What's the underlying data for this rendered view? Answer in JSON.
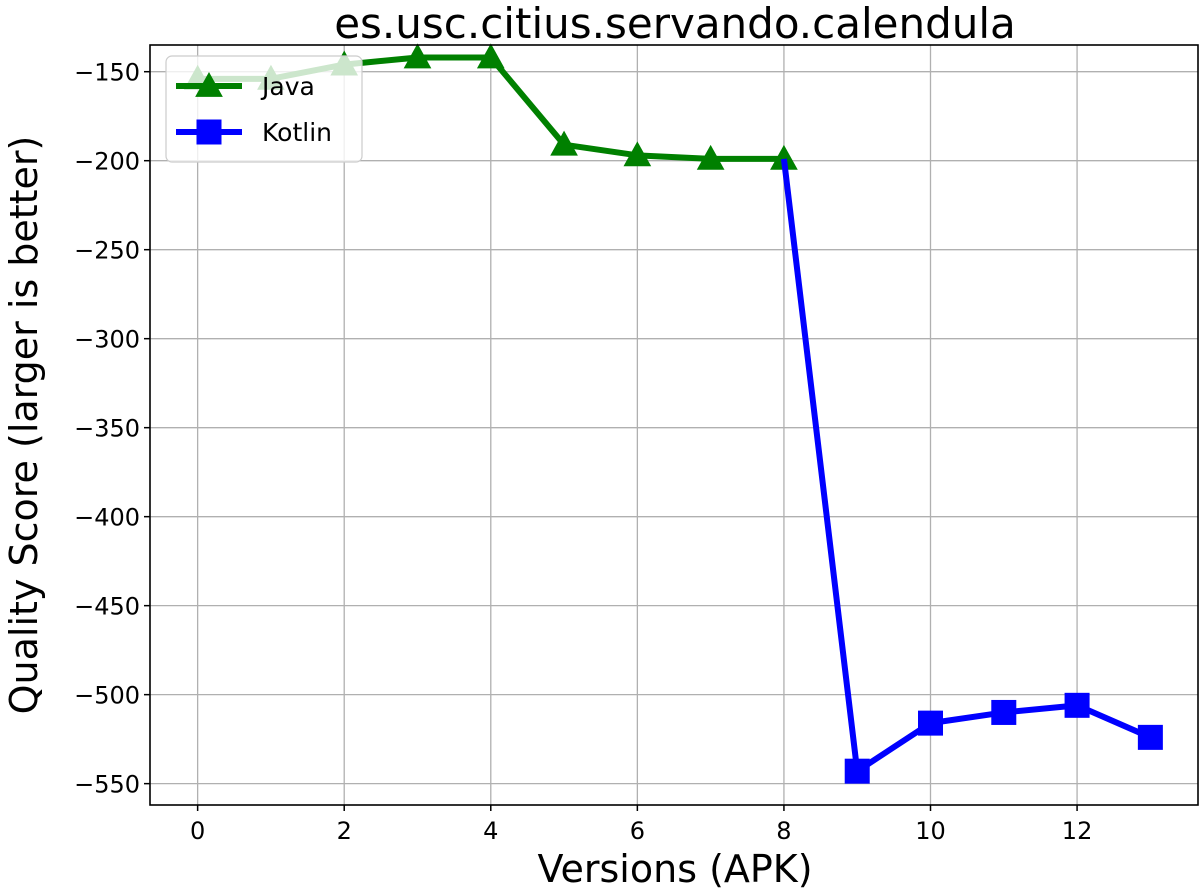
{
  "chart_data": {
    "type": "line",
    "title": "es.usc.citius.servando.calendula",
    "xlabel": "Versions (APK)",
    "ylabel": "Quality Score (larger is better)",
    "xlim": [
      -0.65,
      13.65
    ],
    "ylim": [
      -562,
      -135
    ],
    "x_ticks": [
      0,
      2,
      4,
      6,
      8,
      10,
      12
    ],
    "x_tick_labels": [
      "0",
      "2",
      "4",
      "6",
      "8",
      "10",
      "12"
    ],
    "y_ticks": [
      -150,
      -200,
      -250,
      -300,
      -350,
      -400,
      -450,
      -500,
      -550
    ],
    "y_tick_labels": [
      "−150",
      "−200",
      "−250",
      "−300",
      "−350",
      "−400",
      "−450",
      "−500",
      "−550"
    ],
    "grid": true,
    "legend_position": "upper-left",
    "series": [
      {
        "name": "Java",
        "color": "#008000",
        "marker": "triangle",
        "x": [
          0,
          1,
          2,
          3,
          4,
          5,
          6,
          7,
          8
        ],
        "y": [
          -154,
          -154,
          -146,
          -142,
          -142,
          -191,
          -197,
          -199,
          -199
        ]
      },
      {
        "name": "Kotlin",
        "color": "#0000ff",
        "marker": "square",
        "x": [
          8,
          9,
          10,
          11,
          12,
          13
        ],
        "y": [
          -199,
          -543,
          -516,
          -510,
          -506,
          -524
        ]
      }
    ]
  }
}
